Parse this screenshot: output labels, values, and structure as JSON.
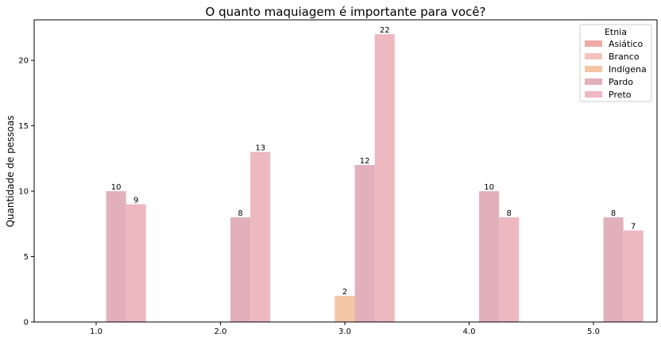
{
  "chart_data": {
    "type": "bar",
    "title": "O quanto maquiagem é importante para você?",
    "xlabel": "",
    "ylabel": "Quantidade de pessoas",
    "categories": [
      "1.0",
      "2.0",
      "3.0",
      "4.0",
      "5.0"
    ],
    "ylim": [
      0,
      23.1
    ],
    "yticks": [
      0,
      5,
      10,
      15,
      20
    ],
    "grid": false,
    "legend": {
      "title": "Etnia",
      "placement": "top-right"
    },
    "series": [
      {
        "name": "Asiático",
        "color": "#eeaaa6",
        "values": [
          0,
          0,
          0,
          0,
          0
        ]
      },
      {
        "name": "Branco",
        "color": "#f3c2bf",
        "values": [
          0,
          0,
          0,
          0,
          0
        ]
      },
      {
        "name": "Indígena",
        "color": "#f3c6a6",
        "values": [
          0,
          0,
          2,
          0,
          0
        ]
      },
      {
        "name": "Pardo",
        "color": "#e2b0bb",
        "values": [
          10,
          8,
          12,
          10,
          8
        ]
      },
      {
        "name": "Preto",
        "color": "#eeb8c0",
        "values": [
          9,
          13,
          22,
          8,
          7
        ]
      }
    ]
  }
}
